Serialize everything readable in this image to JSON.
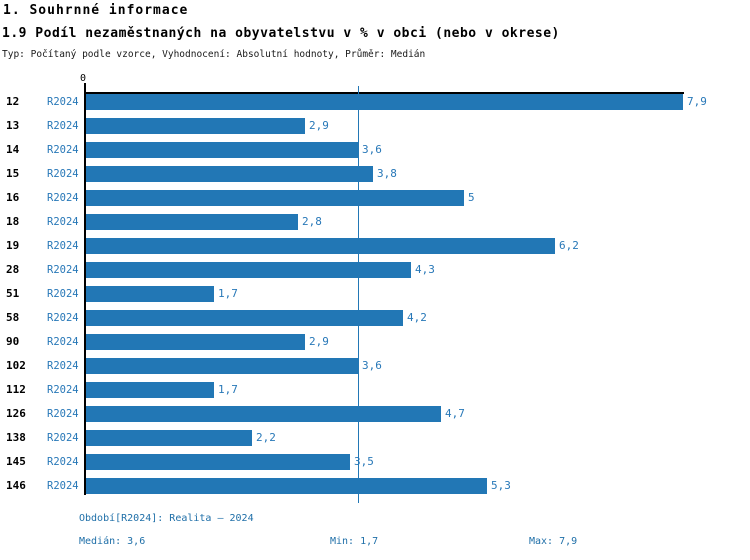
{
  "header": {
    "section_title": "1. Souhrnné informace",
    "chart_title": "1.9 Podíl nezaměstnaných na obyvatelstvu v % v obci (nebo v okrese)",
    "subtitle": "Typ: Počítaný podle vzorce, Vyhodnocení: Absolutní hodnoty, Průměr: Medián"
  },
  "chart_data": {
    "type": "bar",
    "orientation": "horizontal",
    "title": "1.9 Podíl nezaměstnaných na obyvatelstvu v % v obci (nebo v okrese)",
    "categories": [
      "12",
      "13",
      "14",
      "15",
      "16",
      "18",
      "19",
      "28",
      "51",
      "58",
      "90",
      "102",
      "112",
      "126",
      "138",
      "145",
      "146"
    ],
    "series_label": "R2024",
    "values": [
      7.9,
      2.9,
      3.6,
      3.8,
      5,
      2.8,
      6.2,
      4.3,
      1.7,
      4.2,
      2.9,
      3.6,
      1.7,
      4.7,
      2.2,
      3.5,
      5.3
    ],
    "value_labels": [
      "7,9",
      "2,9",
      "3,6",
      "3,8",
      "5",
      "2,8",
      "6,2",
      "4,3",
      "1,7",
      "4,2",
      "2,9",
      "3,6",
      "1,7",
      "4,7",
      "2,2",
      "3,5",
      "5,3"
    ],
    "xlim": [
      0,
      7.9
    ],
    "axis_tick_label": "0",
    "median_value": 3.6,
    "grid": false,
    "legend": "none",
    "bar_color": "#2277B5",
    "median_line_color": "#2277B5",
    "label_color": "#2878B8"
  },
  "footer": {
    "period": "Období[R2024]: Realita – 2024",
    "median": "Medián: 3,6",
    "min": "Min: 1,7",
    "max": "Max: 7,9"
  }
}
